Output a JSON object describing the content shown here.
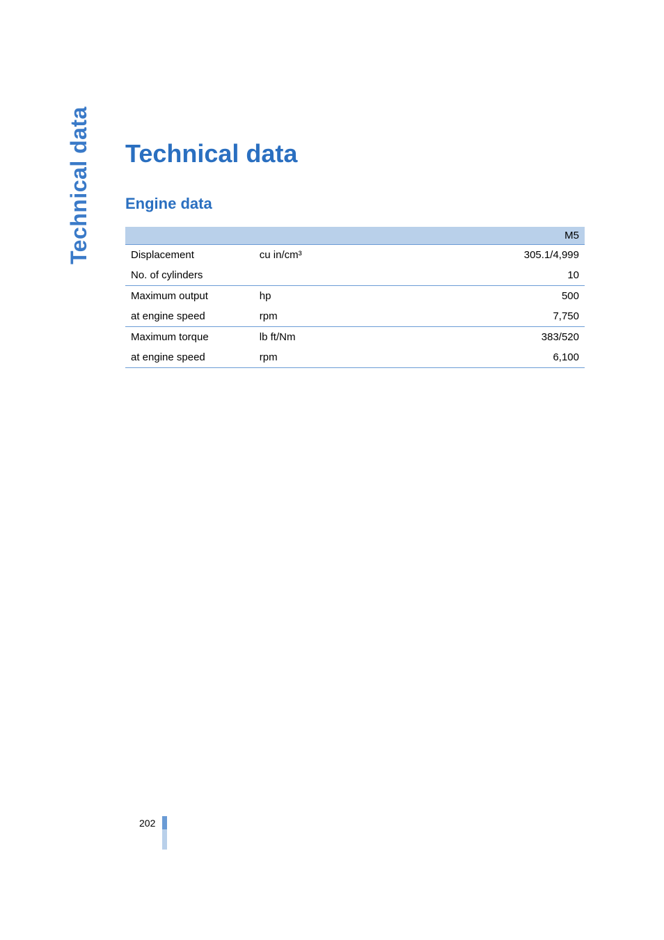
{
  "side_label": "Technical data",
  "page_title": "Technical data",
  "section_title": "Engine data",
  "page_number": "202",
  "colors": {
    "heading_blue": "#2a6fc0",
    "side_label_blue": "#3a7ac8",
    "header_row_bg": "#b9d0ea",
    "border_blue": "#6a9bd5",
    "text_black": "#000000",
    "page_bg": "#ffffff"
  },
  "engine_table": {
    "type": "table",
    "header": {
      "col3": "M5"
    },
    "rows": [
      {
        "param": "Displacement",
        "unit": "cu in/cm³",
        "value": "305.1/4,999",
        "group_end": false
      },
      {
        "param": "No. of cylinders",
        "unit": "",
        "value": "10",
        "group_end": true
      },
      {
        "param": "Maximum output",
        "unit": "hp",
        "value": "500",
        "group_end": false
      },
      {
        "param": "at engine speed",
        "unit": "rpm",
        "value": "7,750",
        "group_end": true
      },
      {
        "param": "Maximum torque",
        "unit": "lb ft/Nm",
        "value": "383/520",
        "group_end": false
      },
      {
        "param": "at engine speed",
        "unit": "rpm",
        "value": "6,100",
        "group_end": true
      }
    ]
  }
}
